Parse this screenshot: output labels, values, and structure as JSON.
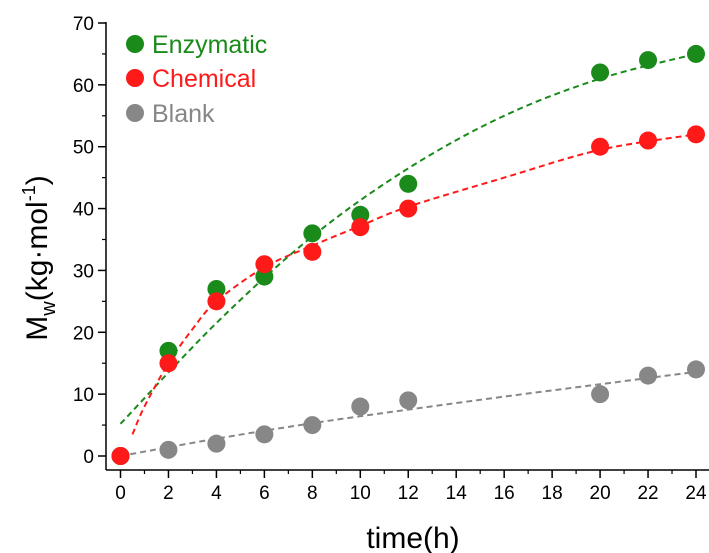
{
  "chart_data": {
    "type": "scatter",
    "xlabel": "time(h)",
    "ylabel": {
      "main": "M",
      "sub": "w",
      "text": "(kg·mol",
      "sup": "-1",
      "close": ")"
    },
    "xlim": [
      0,
      24
    ],
    "ylim": [
      0,
      70
    ],
    "xticks": [
      "0",
      "2",
      "4",
      "6",
      "8",
      "10",
      "12",
      "14",
      "16",
      "18",
      "20",
      "22",
      "24"
    ],
    "yticks": [
      "0",
      "10",
      "20",
      "30",
      "40",
      "50",
      "60",
      "70"
    ],
    "grid": false,
    "legend_position": "top-left",
    "series": [
      {
        "name": "Enzymatic",
        "color": "#1a8a1a",
        "x": [
          0,
          2,
          4,
          6,
          8,
          10,
          12,
          20,
          22,
          24
        ],
        "y": [
          0,
          17,
          27,
          29,
          36,
          39,
          44,
          62,
          64,
          65
        ],
        "fit": {
          "x": [
            0,
            4,
            8,
            12,
            16,
            20,
            24
          ],
          "y": [
            5.2,
            21.5,
            35.5,
            46.5,
            55,
            61,
            65
          ]
        }
      },
      {
        "name": "Chemical",
        "color": "#ff1a1a",
        "x": [
          0,
          2,
          4,
          6,
          8,
          10,
          12,
          20,
          22,
          24
        ],
        "y": [
          0,
          15,
          25,
          31,
          33,
          37,
          40,
          50,
          51,
          52
        ],
        "fit": {
          "x": [
            0.5,
            1,
            2,
            3,
            4,
            6,
            8,
            10,
            12,
            16,
            20,
            24
          ],
          "y": [
            3.5,
            8,
            15,
            20.5,
            25,
            30.5,
            34,
            37.2,
            40.3,
            45,
            49.5,
            52
          ]
        }
      },
      {
        "name": "Blank",
        "color": "#878787",
        "x": [
          0,
          2,
          4,
          6,
          8,
          10,
          12,
          20,
          22,
          24
        ],
        "y": [
          0,
          1,
          2,
          3.5,
          5,
          8,
          9,
          10,
          13,
          14
        ],
        "fit": {
          "x": [
            0,
            4,
            8,
            12,
            16,
            20,
            24
          ],
          "y": [
            0,
            2.8,
            5.3,
            7.5,
            9.6,
            11.6,
            13.6
          ]
        }
      }
    ]
  }
}
